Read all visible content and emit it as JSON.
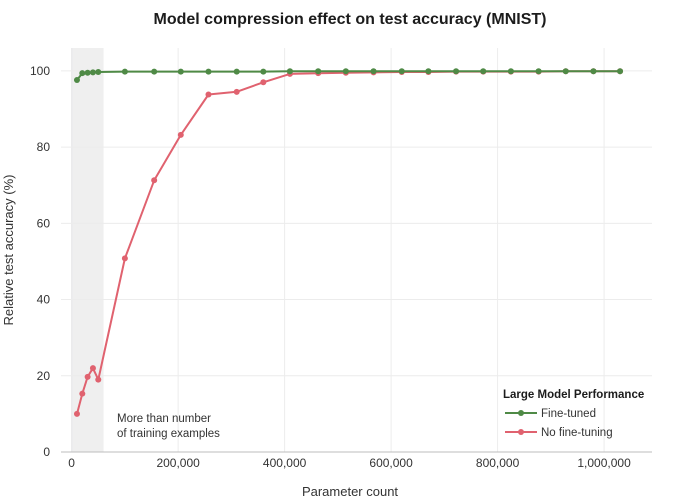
{
  "chart_data": {
    "type": "line",
    "title": "Model compression effect on test accuracy (MNIST)",
    "xlabel": "Parameter count",
    "ylabel": "Relative test accuracy (%)",
    "xlim": [
      -20000,
      1090000
    ],
    "ylim": [
      0,
      106
    ],
    "xticks": [
      0,
      200000,
      400000,
      600000,
      800000,
      1000000
    ],
    "xtick_labels": [
      "0",
      "200,000",
      "400,000",
      "600,000",
      "800,000",
      "1,000,000"
    ],
    "yticks": [
      0,
      20,
      40,
      60,
      80,
      100
    ],
    "ytick_labels": [
      "0",
      "20",
      "40",
      "60",
      "80",
      "100"
    ],
    "grid": true,
    "shaded_region": {
      "x0": 0,
      "x1": 60000,
      "color": "#efefef",
      "label_lines": [
        "More than number",
        "of training examples"
      ]
    },
    "legend": {
      "title": "Large Model Performance",
      "position": "bottom-right"
    },
    "series": [
      {
        "name": "Fine-tuned",
        "color": "#4f8a46",
        "x": [
          10000,
          20000,
          30000,
          40000,
          50000,
          100000,
          155000,
          205000,
          257000,
          310000,
          360000,
          410000,
          463000,
          515000,
          567000,
          620000,
          670000,
          722000,
          773000,
          825000,
          877000,
          928000,
          980000,
          1030000
        ],
        "y": [
          97.6,
          99.4,
          99.5,
          99.6,
          99.7,
          99.8,
          99.8,
          99.8,
          99.8,
          99.8,
          99.8,
          99.9,
          99.9,
          99.9,
          99.9,
          99.9,
          99.9,
          99.9,
          99.9,
          99.9,
          99.9,
          99.9,
          99.9,
          99.9
        ]
      },
      {
        "name": "No fine-tuning",
        "color": "#e0626f",
        "x": [
          10000,
          20000,
          30000,
          40000,
          50000,
          100000,
          155000,
          205000,
          257000,
          310000,
          360000,
          410000,
          463000,
          515000,
          567000,
          620000,
          670000,
          722000,
          773000,
          825000,
          877000,
          928000,
          980000,
          1030000
        ],
        "y": [
          10.0,
          15.3,
          19.7,
          22.0,
          19.0,
          50.8,
          71.3,
          83.2,
          93.8,
          94.5,
          97.0,
          99.2,
          99.4,
          99.5,
          99.6,
          99.7,
          99.7,
          99.8,
          99.8,
          99.8,
          99.8,
          99.9,
          99.9,
          99.9
        ]
      }
    ]
  }
}
